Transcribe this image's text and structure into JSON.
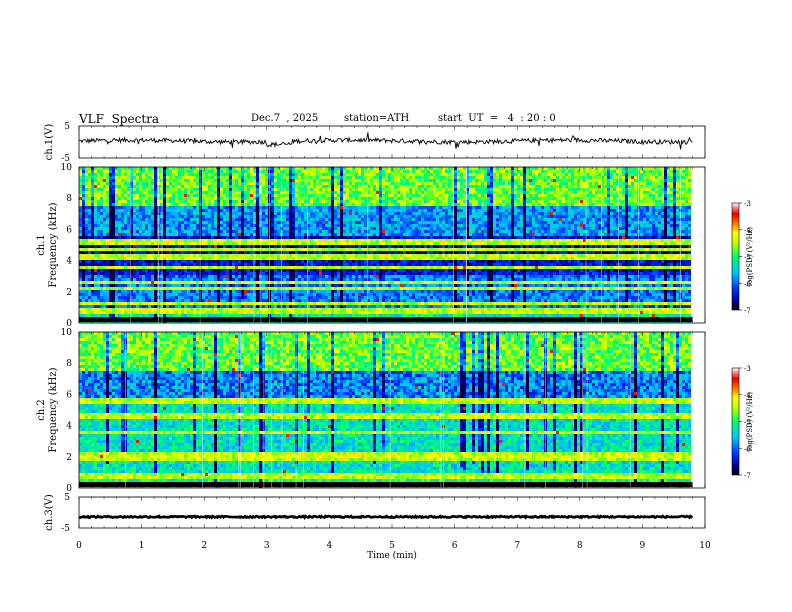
{
  "header": {
    "title": "VLF  Spectra",
    "date": "Dec.7  , 2025",
    "station": "station=ATH",
    "start": "start  UT  =   4  : 20 : 0"
  },
  "chart_data": [
    {
      "type": "line",
      "name": "ch1-waveform",
      "ylabel": "ch.1(V)",
      "yticks": [
        "5",
        "-5"
      ],
      "ylim": [
        -5,
        5
      ],
      "xlim": [
        0,
        10
      ],
      "approx_level": 0.3,
      "color": "#000000"
    },
    {
      "type": "heatmap",
      "name": "ch1-spectrogram",
      "ylabel": "ch.1\nFrequency  (kHz)",
      "yticks": [
        "0",
        "2",
        "4",
        "6",
        "8",
        "10"
      ],
      "ylim": [
        0,
        10
      ],
      "xlim": [
        0,
        9.8
      ],
      "colorbar": {
        "label": "log(PSD) (V²/Hz)",
        "ticks": [
          "-3",
          "-4",
          "-5",
          "-6",
          "-7"
        ],
        "range": [
          -7,
          -3
        ]
      },
      "bands_khz": [
        0.8,
        1.3,
        2.2,
        2.55,
        3.5,
        4.2,
        4.65,
        5.2
      ]
    },
    {
      "type": "heatmap",
      "name": "ch2-spectrogram",
      "ylabel": "ch.2\nFrequency  (kHz)",
      "yticks": [
        "0",
        "2",
        "4",
        "6",
        "8",
        "10"
      ],
      "ylim": [
        0,
        10
      ],
      "xlim": [
        0,
        9.8
      ],
      "colorbar": {
        "label": "log(PSD) (V²/Hz)",
        "ticks": [
          "-3",
          "-4",
          "-5",
          "-6",
          "-7"
        ],
        "range": [
          -7,
          -3
        ]
      },
      "bands_khz": [
        0.8,
        1.9,
        2.1,
        3.5,
        4.6,
        5.6
      ]
    },
    {
      "type": "line",
      "name": "ch3-waveform",
      "ylabel": "ch.3(V)",
      "yticks": [
        "5",
        "-5"
      ],
      "ylim": [
        -5,
        5
      ],
      "xlim": [
        0,
        10
      ],
      "approx_level": -1.4,
      "color": "#000000"
    }
  ],
  "xaxis": {
    "label": "Time  (min)",
    "ticks": [
      "0",
      "1",
      "2",
      "3",
      "4",
      "5",
      "6",
      "7",
      "8",
      "9",
      "10"
    ],
    "range": [
      0,
      10
    ]
  }
}
